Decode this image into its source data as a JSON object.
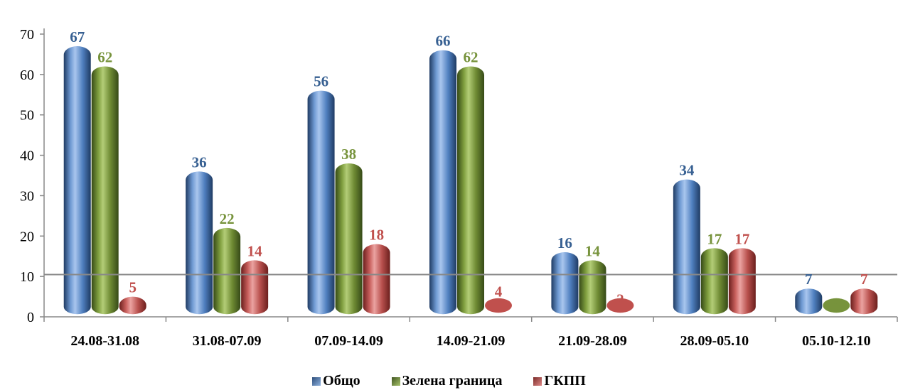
{
  "chart_data": {
    "type": "bar",
    "categories": [
      "24.08-31.08",
      "31.08-07.09",
      "07.09-14.09",
      "14.09-21.09",
      "21.09-28.09",
      "28.09-05.10",
      "05.10-12.10"
    ],
    "series": [
      {
        "name": "Общо",
        "values": [
          67,
          36,
          56,
          66,
          16,
          34,
          7
        ],
        "color": "#4F81BD",
        "label_color": "#376092"
      },
      {
        "name": "Зелена граница",
        "values": [
          62,
          22,
          38,
          62,
          14,
          17,
          0
        ],
        "color": "#77933C",
        "label_color": "#77933C"
      },
      {
        "name": "ГКПП",
        "values": [
          5,
          14,
          18,
          4,
          2,
          17,
          7
        ],
        "color": "#C0504D",
        "label_color": "#C0504D"
      }
    ],
    "y_ticks": [
      "0",
      "10",
      "20",
      "30",
      "40",
      "50",
      "60",
      "70"
    ],
    "ylim": [
      0,
      70
    ],
    "reference_line": 8,
    "legend_position": "bottom",
    "grid": false
  }
}
